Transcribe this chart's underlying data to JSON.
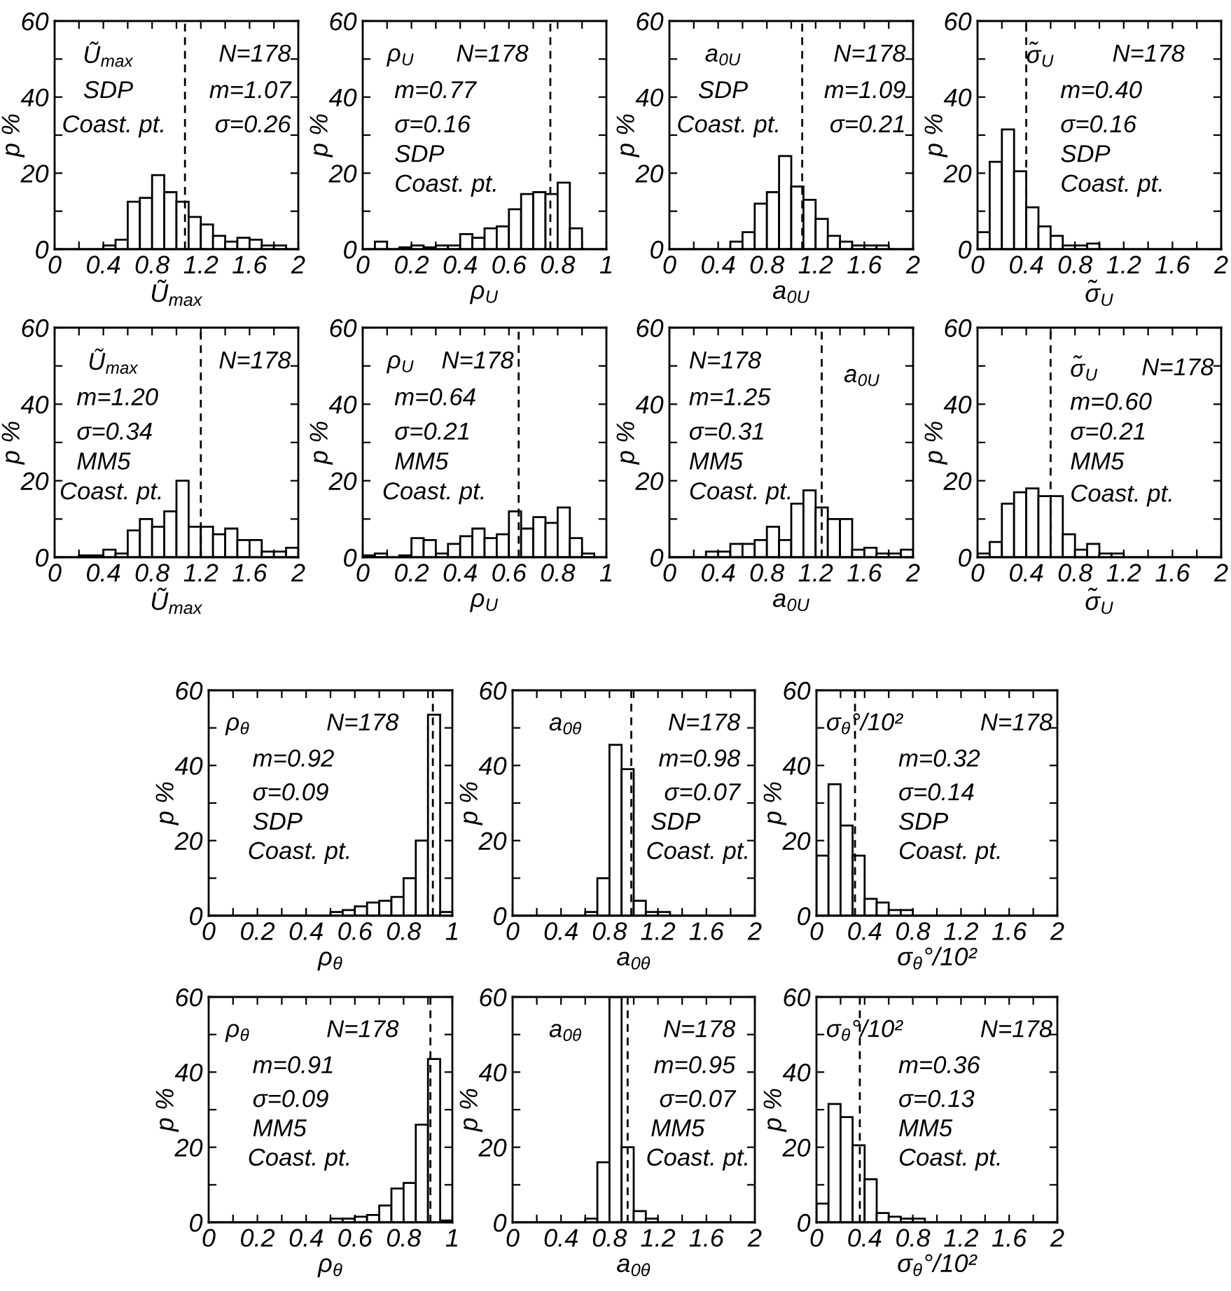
{
  "chart_data": [
    {
      "type": "histogram",
      "xlabel": "Ũ$_{max}$",
      "ylabel": "p %",
      "color": "#ffffff",
      "bins": [
        0,
        0.1,
        0.2,
        0.3,
        0.4,
        0.5,
        0.6,
        0.7,
        0.8,
        0.9,
        1.0,
        1.1,
        1.2,
        1.3,
        1.4,
        1.5,
        1.6,
        1.7,
        1.8,
        1.9,
        2.0
      ],
      "values": [
        0,
        0,
        0,
        0,
        1,
        2.5,
        12.5,
        13.5,
        19.5,
        15,
        12.5,
        8.5,
        6.5,
        3.5,
        2,
        3,
        2.5,
        1,
        1,
        0
      ],
      "xlim": [
        0,
        2
      ],
      "ylim": [
        0,
        60
      ],
      "xticks": [
        0,
        {
          "value": 0.2,
          "label": null
        },
        0.4,
        {
          "value": 0.6,
          "label": null
        },
        0.8,
        {
          "value": 1.0,
          "label": null
        },
        1.2,
        {
          "value": 1.4,
          "label": null
        },
        1.6,
        {
          "value": 1.8,
          "label": null
        },
        2
      ],
      "yticks": [
        0,
        {
          "value": 10,
          "label": null
        },
        20,
        {
          "value": 30,
          "label": null
        },
        40,
        {
          "value": 50,
          "label": null
        },
        60
      ],
      "ref_lines": [
        {
          "axis": "x",
          "value": 1.07,
          "line_style": "dashed"
        }
      ],
      "annotations": [
        "Ũ$_{max}$",
        "SDP",
        "Coast. pt.",
        "N=178",
        "m=1.07",
        "σ=0.26"
      ]
    },
    {
      "type": "histogram",
      "xlabel": "ρ$_{U}$",
      "ylabel": "p %",
      "color": "#ffffff",
      "bins": [
        0,
        0.05,
        0.1,
        0.15,
        0.2,
        0.25,
        0.3,
        0.35,
        0.4,
        0.45,
        0.5,
        0.55,
        0.6,
        0.65,
        0.7,
        0.75,
        0.8,
        0.85,
        0.9,
        0.95,
        1.0
      ],
      "values": [
        0,
        2,
        0,
        0.5,
        1,
        0.5,
        1,
        1,
        4,
        3,
        5.5,
        6,
        10.5,
        14.5,
        15,
        14.5,
        17.5,
        5.5,
        0,
        0
      ],
      "xlim": [
        0,
        1
      ],
      "ylim": [
        0,
        60
      ],
      "xticks": [
        0,
        {
          "value": 0.1,
          "label": null
        },
        0.2,
        {
          "value": 0.3,
          "label": null
        },
        0.4,
        {
          "value": 0.5,
          "label": null
        },
        0.6,
        {
          "value": 0.7,
          "label": null
        },
        0.8,
        {
          "value": 0.9,
          "label": null
        },
        1
      ],
      "yticks": [
        0,
        {
          "value": 10,
          "label": null
        },
        20,
        {
          "value": 30,
          "label": null
        },
        40,
        {
          "value": 50,
          "label": null
        },
        60
      ],
      "ref_lines": [
        {
          "axis": "x",
          "value": 0.77,
          "line_style": "dashed"
        }
      ],
      "annotations": [
        "ρ$_{U}$",
        "N=178",
        "m=0.77",
        "σ=0.16",
        "SDP",
        "Coast. pt."
      ]
    },
    {
      "type": "histogram",
      "xlabel": "a$_{0U}$",
      "ylabel": "p %",
      "color": "#ffffff",
      "bins": [
        0,
        0.1,
        0.2,
        0.3,
        0.4,
        0.5,
        0.6,
        0.7,
        0.8,
        0.9,
        1.0,
        1.1,
        1.2,
        1.3,
        1.4,
        1.5,
        1.6,
        1.7,
        1.8,
        1.9,
        2.0
      ],
      "values": [
        0,
        0,
        0,
        0,
        0,
        2,
        4.5,
        12,
        15,
        24.5,
        16.5,
        13,
        8,
        3.5,
        2,
        1,
        1,
        1,
        0,
        0
      ],
      "xlim": [
        0,
        2
      ],
      "ylim": [
        0,
        60
      ],
      "xticks": [
        0,
        {
          "value": 0.2,
          "label": null
        },
        0.4,
        {
          "value": 0.6,
          "label": null
        },
        0.8,
        {
          "value": 1.0,
          "label": null
        },
        1.2,
        {
          "value": 1.4,
          "label": null
        },
        1.6,
        {
          "value": 1.8,
          "label": null
        },
        2
      ],
      "yticks": [
        0,
        {
          "value": 10,
          "label": null
        },
        20,
        {
          "value": 30,
          "label": null
        },
        40,
        {
          "value": 50,
          "label": null
        },
        60
      ],
      "ref_lines": [
        {
          "axis": "x",
          "value": 1.09,
          "line_style": "dashed"
        }
      ],
      "annotations": [
        "a$_{0U}$",
        "SDP",
        "Coast. pt.",
        "N=178",
        "m=1.09",
        "σ=0.21"
      ]
    },
    {
      "type": "histogram",
      "xlabel": "σ̃$_{U}$",
      "ylabel": "p %",
      "color": "#ffffff",
      "bins": [
        0,
        0.1,
        0.2,
        0.3,
        0.4,
        0.5,
        0.6,
        0.7,
        0.8,
        0.9,
        1.0,
        1.1,
        1.2,
        1.3,
        1.4,
        1.5,
        1.6,
        1.7,
        1.8,
        1.9,
        2.0
      ],
      "values": [
        4.5,
        23,
        31.5,
        20.5,
        11,
        6,
        3.5,
        1,
        1,
        1.5,
        0,
        0,
        0,
        0,
        0,
        0,
        0,
        0,
        0,
        0
      ],
      "xlim": [
        0,
        2
      ],
      "ylim": [
        0,
        60
      ],
      "xticks": [
        0,
        {
          "value": 0.2,
          "label": null
        },
        0.4,
        {
          "value": 0.6,
          "label": null
        },
        0.8,
        {
          "value": 1.0,
          "label": null
        },
        1.2,
        {
          "value": 1.4,
          "label": null
        },
        1.6,
        {
          "value": 1.8,
          "label": null
        },
        2
      ],
      "yticks": [
        0,
        {
          "value": 10,
          "label": null
        },
        20,
        {
          "value": 30,
          "label": null
        },
        40,
        {
          "value": 50,
          "label": null
        },
        60
      ],
      "ref_lines": [
        {
          "axis": "x",
          "value": 0.4,
          "line_style": "dashed"
        }
      ],
      "annotations": [
        "σ̃$_{U}$",
        "N=178",
        "m=0.40",
        "σ=0.16",
        "SDP",
        "Coast. pt."
      ]
    },
    {
      "type": "histogram",
      "xlabel": "Ũ$_{max}$",
      "ylabel": "p %",
      "color": "#ffffff",
      "bins": [
        0,
        0.1,
        0.2,
        0.3,
        0.4,
        0.5,
        0.6,
        0.7,
        0.8,
        0.9,
        1.0,
        1.1,
        1.2,
        1.3,
        1.4,
        1.5,
        1.6,
        1.7,
        1.8,
        1.9,
        2.0
      ],
      "values": [
        0,
        0,
        0.5,
        0.5,
        2,
        1,
        7,
        10,
        8,
        12,
        20,
        8,
        8,
        6,
        7.5,
        4.5,
        4.5,
        1.5,
        1.5,
        2.5
      ],
      "xlim": [
        0,
        2
      ],
      "ylim": [
        0,
        60
      ],
      "xticks": [
        0,
        {
          "value": 0.2,
          "label": null
        },
        0.4,
        {
          "value": 0.6,
          "label": null
        },
        0.8,
        {
          "value": 1.0,
          "label": null
        },
        1.2,
        {
          "value": 1.4,
          "label": null
        },
        1.6,
        {
          "value": 1.8,
          "label": null
        },
        2
      ],
      "yticks": [
        0,
        {
          "value": 10,
          "label": null
        },
        20,
        {
          "value": 30,
          "label": null
        },
        40,
        {
          "value": 50,
          "label": null
        },
        60
      ],
      "ref_lines": [
        {
          "axis": "x",
          "value": 1.2,
          "line_style": "dashed"
        }
      ],
      "annotations": [
        "Ũ$_{max}$",
        "N=178",
        "m=1.20",
        "σ=0.34",
        "MM5",
        "Coast. pt."
      ]
    },
    {
      "type": "histogram",
      "xlabel": "ρ$_{U}$",
      "ylabel": "p %",
      "color": "#ffffff",
      "bins": [
        0,
        0.05,
        0.1,
        0.15,
        0.2,
        0.25,
        0.3,
        0.35,
        0.4,
        0.45,
        0.5,
        0.55,
        0.6,
        0.65,
        0.7,
        0.75,
        0.8,
        0.85,
        0.9,
        0.95,
        1.0
      ],
      "values": [
        0.5,
        1,
        0,
        0.5,
        5,
        4.5,
        1,
        3.5,
        5.5,
        7.5,
        5,
        6,
        12,
        7.5,
        10.5,
        9,
        13,
        5,
        1,
        0
      ],
      "xlim": [
        0,
        1
      ],
      "ylim": [
        0,
        60
      ],
      "xticks": [
        0,
        {
          "value": 0.1,
          "label": null
        },
        0.2,
        {
          "value": 0.3,
          "label": null
        },
        0.4,
        {
          "value": 0.5,
          "label": null
        },
        0.6,
        {
          "value": 0.7,
          "label": null
        },
        0.8,
        {
          "value": 0.9,
          "label": null
        },
        1
      ],
      "yticks": [
        0,
        {
          "value": 10,
          "label": null
        },
        20,
        {
          "value": 30,
          "label": null
        },
        40,
        {
          "value": 50,
          "label": null
        },
        60
      ],
      "ref_lines": [
        {
          "axis": "x",
          "value": 0.64,
          "line_style": "dashed"
        }
      ],
      "annotations": [
        "ρ$_{U}$",
        "N=178",
        "m=0.64",
        "σ=0.21",
        "MM5",
        "Coast. pt."
      ]
    },
    {
      "type": "histogram",
      "xlabel": "a$_{0U}$",
      "ylabel": "p %",
      "color": "#ffffff",
      "bins": [
        0,
        0.1,
        0.2,
        0.3,
        0.4,
        0.5,
        0.6,
        0.7,
        0.8,
        0.9,
        1.0,
        1.1,
        1.2,
        1.3,
        1.4,
        1.5,
        1.6,
        1.7,
        1.8,
        1.9,
        2.0
      ],
      "values": [
        0,
        0,
        0,
        1.5,
        1.5,
        3.5,
        3.5,
        4.5,
        8,
        4.5,
        14,
        17.5,
        13,
        10,
        10,
        2,
        2.5,
        1,
        1,
        2
      ],
      "xlim": [
        0,
        2
      ],
      "ylim": [
        0,
        60
      ],
      "xticks": [
        0,
        {
          "value": 0.2,
          "label": null
        },
        0.4,
        {
          "value": 0.6,
          "label": null
        },
        0.8,
        {
          "value": 1.0,
          "label": null
        },
        1.2,
        {
          "value": 1.4,
          "label": null
        },
        1.6,
        {
          "value": 1.8,
          "label": null
        },
        2
      ],
      "yticks": [
        0,
        {
          "value": 10,
          "label": null
        },
        20,
        {
          "value": 30,
          "label": null
        },
        40,
        {
          "value": 50,
          "label": null
        },
        60
      ],
      "ref_lines": [
        {
          "axis": "x",
          "value": 1.25,
          "line_style": "dashed"
        }
      ],
      "annotations": [
        "N=178",
        "m=1.25",
        "σ=0.31",
        "MM5",
        "Coast. pt.",
        "a$_{0U}$"
      ]
    },
    {
      "type": "histogram",
      "xlabel": "σ̃$_{U}$",
      "ylabel": "p %",
      "color": "#ffffff",
      "bins": [
        0,
        0.1,
        0.2,
        0.3,
        0.4,
        0.5,
        0.6,
        0.7,
        0.8,
        0.9,
        1.0,
        1.1,
        1.2,
        1.3,
        1.4,
        1.5,
        1.6,
        1.7,
        1.8,
        1.9,
        2.0
      ],
      "values": [
        1,
        4,
        14,
        17,
        18,
        16,
        16,
        6,
        2,
        3.5,
        1,
        1,
        0,
        0,
        0,
        0,
        0,
        0,
        0,
        0
      ],
      "xlim": [
        0,
        2
      ],
      "ylim": [
        0,
        60
      ],
      "xticks": [
        0,
        {
          "value": 0.2,
          "label": null
        },
        0.4,
        {
          "value": 0.6,
          "label": null
        },
        0.8,
        {
          "value": 1.0,
          "label": null
        },
        1.2,
        {
          "value": 1.4,
          "label": null
        },
        1.6,
        {
          "value": 1.8,
          "label": null
        },
        2
      ],
      "yticks": [
        0,
        {
          "value": 10,
          "label": null
        },
        20,
        {
          "value": 30,
          "label": null
        },
        40,
        {
          "value": 50,
          "label": null
        },
        60
      ],
      "ref_lines": [
        {
          "axis": "x",
          "value": 0.6,
          "line_style": "dashed"
        }
      ],
      "annotations": [
        "σ̃$_{U}$",
        "N=178",
        "m=0.60",
        "σ=0.21",
        "MM5",
        "Coast. pt."
      ]
    },
    {
      "type": "histogram",
      "xlabel": "ρ$_{θ}$",
      "ylabel": "p %",
      "color": "#ffffff",
      "bins": [
        0,
        0.05,
        0.1,
        0.15,
        0.2,
        0.25,
        0.3,
        0.35,
        0.4,
        0.45,
        0.5,
        0.55,
        0.6,
        0.65,
        0.7,
        0.75,
        0.8,
        0.85,
        0.9,
        0.95,
        1.0
      ],
      "values": [
        0,
        0,
        0,
        0,
        0,
        0,
        0,
        0,
        0,
        0,
        1,
        1.5,
        2.5,
        3.5,
        4,
        5,
        10,
        20,
        53.5,
        1
      ],
      "xlim": [
        0,
        1
      ],
      "ylim": [
        0,
        60
      ],
      "xticks": [
        0,
        {
          "value": 0.1,
          "label": null
        },
        0.2,
        {
          "value": 0.3,
          "label": null
        },
        0.4,
        {
          "value": 0.5,
          "label": null
        },
        0.6,
        {
          "value": 0.7,
          "label": null
        },
        0.8,
        {
          "value": 0.9,
          "label": null
        },
        1
      ],
      "yticks": [
        0,
        {
          "value": 10,
          "label": null
        },
        20,
        {
          "value": 30,
          "label": null
        },
        40,
        {
          "value": 50,
          "label": null
        },
        60
      ],
      "ref_lines": [
        {
          "axis": "x",
          "value": 0.92,
          "line_style": "dashed"
        }
      ],
      "annotations": [
        "ρ$_{θ}$",
        "N=178",
        "m=0.92",
        "σ=0.09",
        "SDP",
        "Coast. pt."
      ]
    },
    {
      "type": "histogram",
      "xlabel": "a$_{0θ}$",
      "ylabel": "p %",
      "color": "#ffffff",
      "bins": [
        0,
        0.1,
        0.2,
        0.3,
        0.4,
        0.5,
        0.6,
        0.7,
        0.8,
        0.9,
        1.0,
        1.1,
        1.2,
        1.3,
        1.4,
        1.5,
        1.6,
        1.7,
        1.8,
        1.9,
        2.0
      ],
      "values": [
        0,
        0,
        0,
        0,
        0,
        0,
        1,
        10,
        45.5,
        39,
        4,
        1,
        1,
        0,
        0,
        0,
        0,
        0,
        0,
        0
      ],
      "xlim": [
        0,
        2
      ],
      "ylim": [
        0,
        60
      ],
      "xticks": [
        0,
        {
          "value": 0.2,
          "label": null
        },
        0.4,
        {
          "value": 0.6,
          "label": null
        },
        0.8,
        {
          "value": 1.0,
          "label": null
        },
        1.2,
        {
          "value": 1.4,
          "label": null
        },
        1.6,
        {
          "value": 1.8,
          "label": null
        },
        2
      ],
      "yticks": [
        0,
        {
          "value": 10,
          "label": null
        },
        20,
        {
          "value": 30,
          "label": null
        },
        40,
        {
          "value": 50,
          "label": null
        },
        60
      ],
      "ref_lines": [
        {
          "axis": "x",
          "value": 0.98,
          "line_style": "dashed"
        }
      ],
      "annotations": [
        "a$_{0θ}$",
        "N=178",
        "m=0.98",
        "σ=0.07",
        "SDP",
        "Coast. pt."
      ]
    },
    {
      "type": "histogram",
      "xlabel": "σ$_{θ}$°/10²",
      "ylabel": "p %",
      "color": "#ffffff",
      "bins": [
        0,
        0.1,
        0.2,
        0.3,
        0.4,
        0.5,
        0.6,
        0.7,
        0.8,
        0.9,
        1.0,
        1.1,
        1.2,
        1.3,
        1.4,
        1.5,
        1.6,
        1.7,
        1.8,
        1.9,
        2.0
      ],
      "values": [
        16,
        35,
        24,
        16,
        4.5,
        3.5,
        1.5,
        1.5,
        0,
        0,
        0,
        0,
        0,
        0,
        0,
        0,
        0,
        0,
        0,
        0
      ],
      "xlim": [
        0,
        2
      ],
      "ylim": [
        0,
        60
      ],
      "xticks": [
        0,
        {
          "value": 0.2,
          "label": null
        },
        0.4,
        {
          "value": 0.6,
          "label": null
        },
        0.8,
        {
          "value": 1.0,
          "label": null
        },
        1.2,
        {
          "value": 1.4,
          "label": null
        },
        1.6,
        {
          "value": 1.8,
          "label": null
        },
        2
      ],
      "yticks": [
        0,
        {
          "value": 10,
          "label": null
        },
        20,
        {
          "value": 30,
          "label": null
        },
        40,
        {
          "value": 50,
          "label": null
        },
        60
      ],
      "ref_lines": [
        {
          "axis": "x",
          "value": 0.32,
          "line_style": "dashed"
        }
      ],
      "annotations": [
        "σ$_{θ}$°/10²",
        "N=178",
        "m=0.32",
        "σ=0.14",
        "SDP",
        "Coast. pt."
      ]
    },
    {
      "type": "histogram",
      "xlabel": "ρ$_{θ}$",
      "ylabel": "p %",
      "color": "#ffffff",
      "bins": [
        0,
        0.05,
        0.1,
        0.15,
        0.2,
        0.25,
        0.3,
        0.35,
        0.4,
        0.45,
        0.5,
        0.55,
        0.6,
        0.65,
        0.7,
        0.75,
        0.8,
        0.85,
        0.9,
        0.95,
        1.0
      ],
      "values": [
        0,
        0,
        0,
        0,
        0,
        0,
        0,
        0,
        0,
        0,
        1,
        1,
        1.5,
        2,
        4.5,
        9,
        10.5,
        26,
        43.5,
        0.5
      ],
      "xlim": [
        0,
        1
      ],
      "ylim": [
        0,
        60
      ],
      "xticks": [
        0,
        {
          "value": 0.1,
          "label": null
        },
        0.2,
        {
          "value": 0.3,
          "label": null
        },
        0.4,
        {
          "value": 0.5,
          "label": null
        },
        0.6,
        {
          "value": 0.7,
          "label": null
        },
        0.8,
        {
          "value": 0.9,
          "label": null
        },
        1
      ],
      "yticks": [
        0,
        {
          "value": 10,
          "label": null
        },
        20,
        {
          "value": 30,
          "label": null
        },
        40,
        {
          "value": 50,
          "label": null
        },
        60
      ],
      "ref_lines": [
        {
          "axis": "x",
          "value": 0.91,
          "line_style": "dashed"
        }
      ],
      "annotations": [
        "ρ$_{θ}$",
        "N=178",
        "m=0.91",
        "σ=0.09",
        "MM5",
        "Coast. pt."
      ]
    },
    {
      "type": "histogram",
      "xlabel": "a$_{0θ}$",
      "ylabel": "p %",
      "color": "#ffffff",
      "bins": [
        0,
        0.1,
        0.2,
        0.3,
        0.4,
        0.5,
        0.6,
        0.7,
        0.8,
        0.9,
        1.0,
        1.1,
        1.2,
        1.3,
        1.4,
        1.5,
        1.6,
        1.7,
        1.8,
        1.9,
        2.0
      ],
      "values": [
        0,
        0,
        0,
        0,
        0,
        0,
        1,
        16,
        60,
        20,
        3,
        1,
        0,
        0,
        0,
        0,
        0,
        0,
        0,
        0
      ],
      "xlim": [
        0,
        2
      ],
      "ylim": [
        0,
        60
      ],
      "xticks": [
        0,
        {
          "value": 0.2,
          "label": null
        },
        0.4,
        {
          "value": 0.6,
          "label": null
        },
        0.8,
        {
          "value": 1.0,
          "label": null
        },
        1.2,
        {
          "value": 1.4,
          "label": null
        },
        1.6,
        {
          "value": 1.8,
          "label": null
        },
        2
      ],
      "yticks": [
        0,
        {
          "value": 10,
          "label": null
        },
        20,
        {
          "value": 30,
          "label": null
        },
        40,
        {
          "value": 50,
          "label": null
        },
        60
      ],
      "ref_lines": [
        {
          "axis": "x",
          "value": 0.95,
          "line_style": "dashed"
        }
      ],
      "annotations": [
        "a$_{0θ}$",
        "N=178",
        "m=0.95",
        "σ=0.07",
        "MM5",
        "Coast. pt."
      ]
    },
    {
      "type": "histogram",
      "xlabel": "σ$_{θ}$°/10²",
      "ylabel": "p %",
      "color": "#ffffff",
      "bins": [
        0,
        0.1,
        0.2,
        0.3,
        0.4,
        0.5,
        0.6,
        0.7,
        0.8,
        0.9,
        1.0,
        1.1,
        1.2,
        1.3,
        1.4,
        1.5,
        1.6,
        1.7,
        1.8,
        1.9,
        2.0
      ],
      "values": [
        5,
        31.5,
        28,
        20.5,
        11.5,
        2.5,
        1.5,
        1,
        1,
        0,
        0,
        0,
        0,
        0,
        0,
        0,
        0,
        0,
        0,
        0
      ],
      "xlim": [
        0,
        2
      ],
      "ylim": [
        0,
        60
      ],
      "xticks": [
        0,
        {
          "value": 0.2,
          "label": null
        },
        0.4,
        {
          "value": 0.6,
          "label": null
        },
        0.8,
        {
          "value": 1.0,
          "label": null
        },
        1.2,
        {
          "value": 1.4,
          "label": null
        },
        1.6,
        {
          "value": 1.8,
          "label": null
        },
        2
      ],
      "yticks": [
        0,
        {
          "value": 10,
          "label": null
        },
        20,
        {
          "value": 30,
          "label": null
        },
        40,
        {
          "value": 50,
          "label": null
        },
        60
      ],
      "ref_lines": [
        {
          "axis": "x",
          "value": 0.36,
          "line_style": "dashed"
        }
      ],
      "annotations": [
        "σ$_{θ}$°/10²",
        "N=178",
        "m=0.36",
        "σ=0.13",
        "MM5",
        "Coast. pt."
      ]
    }
  ]
}
